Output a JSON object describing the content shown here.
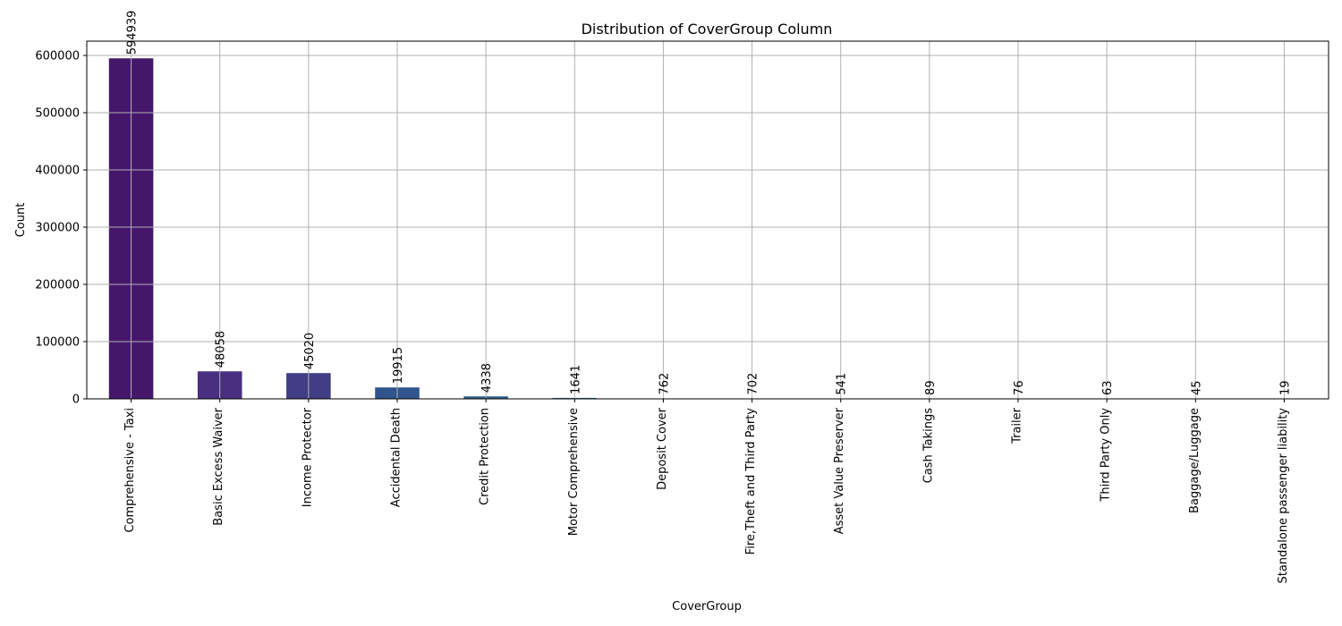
{
  "chart_data": {
    "type": "bar",
    "title": "Distribution of CoverGroup Column",
    "xlabel": "CoverGroup",
    "ylabel": "Count",
    "ylim": [
      0,
      625000
    ],
    "yticks": [
      0,
      100000,
      200000,
      300000,
      400000,
      500000,
      600000
    ],
    "grid": true,
    "categories": [
      "Comprehensive - Taxi",
      "Basic Excess Waiver",
      "Income Protector",
      "Accidental Death",
      "Credit Protection",
      "Motor Comprehensive",
      "Deposit Cover",
      "Fire,Theft and Third Party",
      "Asset Value Preserver",
      "Cash Takings",
      "Trailer",
      "Third Party Only",
      "Baggage/Luggage",
      "Standalone passenger liability"
    ],
    "values": [
      594939,
      48058,
      45020,
      19915,
      4338,
      1641,
      762,
      702,
      541,
      89,
      76,
      63,
      45,
      19
    ],
    "data_labels": [
      "594939",
      "48058",
      "45020",
      "19915",
      "4338",
      "1641",
      "762",
      "702",
      "541",
      "89",
      "76",
      "63",
      "45",
      "19"
    ],
    "colors": [
      "#45176b",
      "#482f7f",
      "#423e85",
      "#31538e",
      "#2f608e",
      "#2a6d8f",
      "#25788e",
      "#20858e",
      "#1f948c",
      "#22a386",
      "#2ab07f",
      "#3fbd71",
      "#5ac864",
      "#7bd053"
    ]
  }
}
